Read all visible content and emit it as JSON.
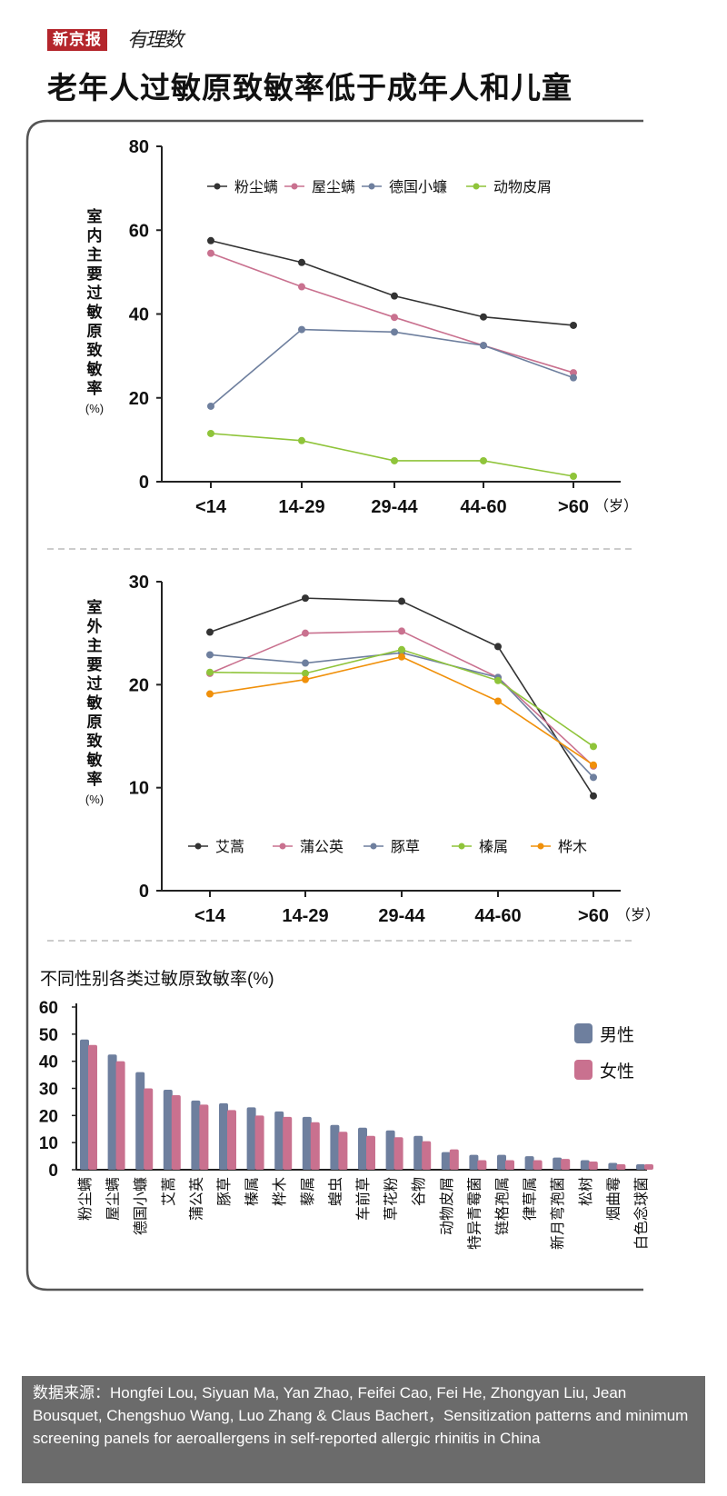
{
  "header": {
    "brand": "新京报",
    "brand_sub": "有理数",
    "title": "老年人过敏原致敏率低于成年人和儿童"
  },
  "chart_data": [
    {
      "type": "line",
      "ylabel": "室内主要过敏原致敏率",
      "yunit": "(%)",
      "xunit": "（岁）",
      "categories": [
        "<14",
        "14-29",
        "29-44",
        "44-60",
        ">60"
      ],
      "ylim": [
        0,
        80
      ],
      "yticks": [
        0,
        20,
        40,
        60,
        80
      ],
      "legend_position": "top",
      "series": [
        {
          "name": "粉尘螨",
          "color": "#333333",
          "values": [
            57.5,
            52.3,
            44.3,
            39.3,
            37.3
          ]
        },
        {
          "name": "屋尘螨",
          "color": "#c9718f",
          "values": [
            54.5,
            46.5,
            39.2,
            32.5,
            26.0
          ]
        },
        {
          "name": "德国小蠊",
          "color": "#6e7f9e",
          "values": [
            18.0,
            36.3,
            35.7,
            32.5,
            24.8
          ]
        },
        {
          "name": "动物皮屑",
          "color": "#8fc43a",
          "values": [
            11.5,
            9.8,
            5.0,
            5.0,
            1.3
          ]
        }
      ]
    },
    {
      "type": "line",
      "ylabel": "室外主要过敏原致敏率",
      "yunit": "(%)",
      "xunit": "（岁）",
      "categories": [
        "<14",
        "14-29",
        "29-44",
        "44-60",
        ">60"
      ],
      "ylim": [
        0,
        30
      ],
      "yticks": [
        0,
        10,
        20,
        30
      ],
      "legend_position": "bottom",
      "series": [
        {
          "name": "艾蒿",
          "color": "#333333",
          "values": [
            25.1,
            28.4,
            28.1,
            23.7,
            9.2
          ]
        },
        {
          "name": "蒲公英",
          "color": "#c9718f",
          "values": [
            21.1,
            25.0,
            25.2,
            20.7,
            12.1
          ]
        },
        {
          "name": "豚草",
          "color": "#6e7f9e",
          "values": [
            22.9,
            22.1,
            23.1,
            20.7,
            11.0
          ]
        },
        {
          "name": "榛属",
          "color": "#8fc43a",
          "values": [
            21.2,
            21.1,
            23.4,
            20.4,
            14.0
          ]
        },
        {
          "name": "桦木",
          "color": "#f0900a",
          "values": [
            19.1,
            20.5,
            22.7,
            18.4,
            12.2
          ]
        }
      ]
    },
    {
      "type": "bar",
      "title": "不同性别各类过敏原致敏率(%)",
      "ylim": [
        0,
        60
      ],
      "yticks": [
        0,
        10,
        20,
        30,
        40,
        50,
        60
      ],
      "legend_position": "top-right",
      "categories": [
        "粉尘螨",
        "屋尘螨",
        "德国小蠊",
        "艾蒿",
        "蒲公英",
        "豚草",
        "榛属",
        "桦木",
        "藜属",
        "蝗虫",
        "车前草",
        "草花粉",
        "谷物",
        "动物皮屑",
        "特异青霉菌",
        "链格孢属",
        "律草属",
        "新月弯孢菌",
        "松树",
        "烟曲霉",
        "白色念球菌"
      ],
      "series": [
        {
          "name": "男性",
          "color": "#6e7f9e",
          "values": [
            48,
            42.5,
            36,
            29.5,
            25.5,
            24.5,
            23,
            21.5,
            19.5,
            16.5,
            15.5,
            14.5,
            12.5,
            6.5,
            5.5,
            5.5,
            5,
            4.5,
            3.5,
            2.5,
            2
          ]
        },
        {
          "name": "女性",
          "color": "#c9718f",
          "values": [
            46,
            40,
            30,
            27.5,
            24,
            22,
            20,
            19.5,
            17.5,
            14,
            12.5,
            12,
            10.5,
            7.5,
            3.5,
            3.5,
            3.5,
            4,
            3,
            2,
            2
          ]
        }
      ]
    }
  ],
  "footer": {
    "source": "数据来源：Hongfei Lou, Siyuan Ma, Yan Zhao, Feifei Cao, Fei He, Zhongyan Liu, Jean Bousquet, Chengshuo Wang, Luo Zhang & Claus Bachert，Sensitization patterns and minimum screening panels for aeroallergens in self-reported allergic rhinitis in China"
  }
}
